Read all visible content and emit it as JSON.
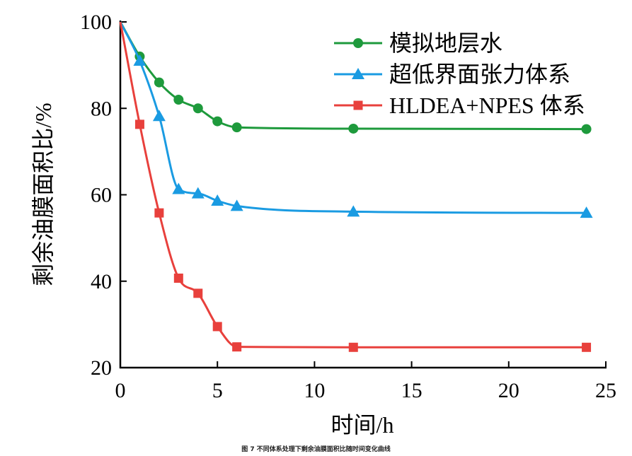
{
  "chart_data": {
    "type": "line",
    "xlabel": "时间/h",
    "ylabel": "剩余油膜面积比/%",
    "xlim": [
      0,
      25
    ],
    "ylim": [
      20,
      100
    ],
    "xticks": [
      0,
      5,
      10,
      15,
      20,
      25
    ],
    "yticks": [
      20,
      40,
      60,
      80,
      100
    ],
    "grid": false,
    "legend_position": "top-right",
    "series": [
      {
        "name": "模拟地层水",
        "color": "#1e9a3c",
        "marker": "circle",
        "x": [
          0,
          1,
          2,
          3,
          4,
          5,
          6,
          12,
          24
        ],
        "y": [
          100,
          92,
          86,
          82,
          80,
          77,
          75.6,
          75.3,
          75.2
        ],
        "marker_from": 1
      },
      {
        "name": "超低界面张力体系",
        "color": "#1a9be2",
        "marker": "triangle",
        "x": [
          0,
          1,
          2,
          3,
          4,
          5,
          6,
          12,
          24
        ],
        "y": [
          100,
          91,
          78.2,
          61.3,
          60.3,
          58.6,
          57.4,
          56.1,
          55.8
        ],
        "marker_from": 1
      },
      {
        "name": "HLDEA+NPES 体系",
        "color": "#e8403c",
        "marker": "square",
        "x": [
          0,
          1,
          2,
          3,
          4,
          5,
          6,
          12,
          24
        ],
        "y": [
          100,
          76.3,
          55.8,
          40.7,
          37.2,
          29.5,
          24.8,
          24.7,
          24.7
        ],
        "marker_from": 1
      }
    ]
  },
  "caption": "图 7    不同体系处理下剩余油膜面积比随时间变化曲线"
}
